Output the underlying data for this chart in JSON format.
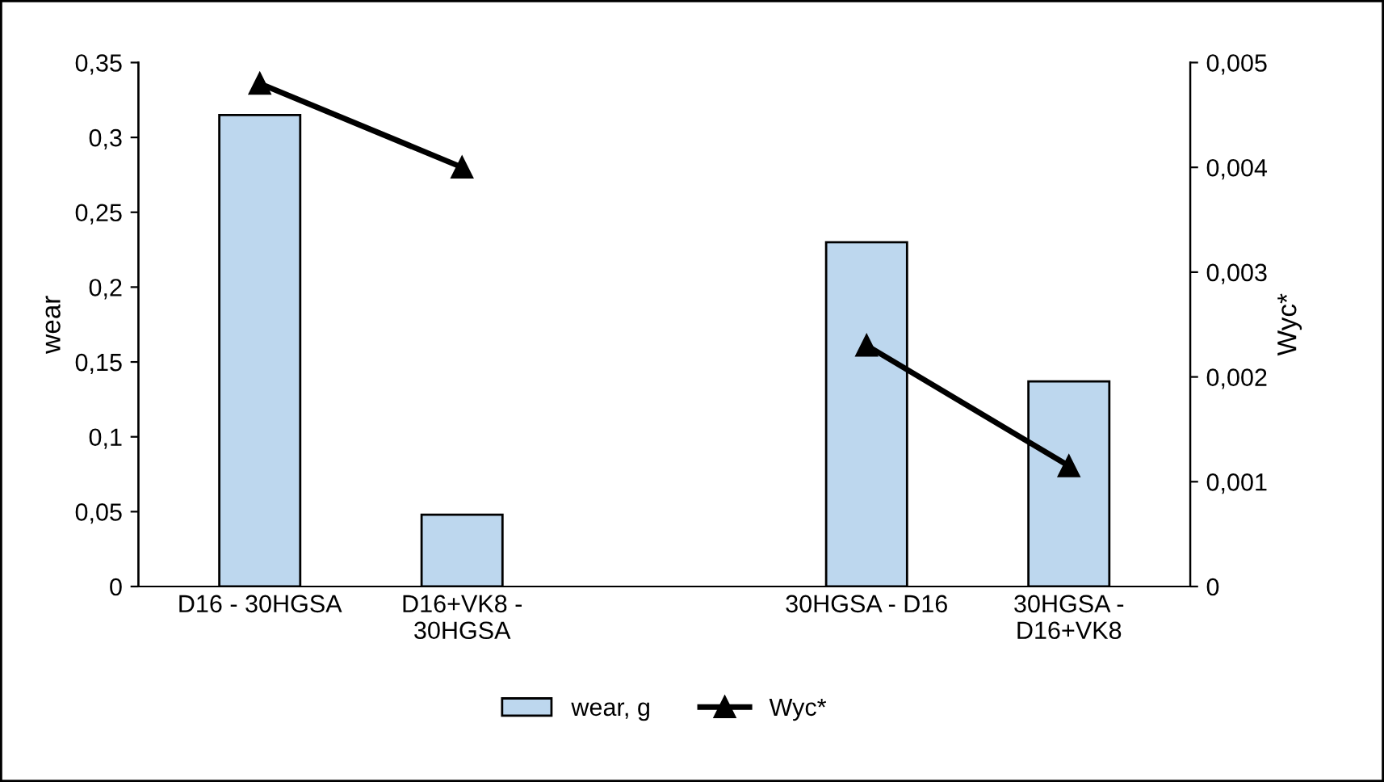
{
  "chart_data": {
    "type": "bar",
    "ylabel": "wear",
    "y2label": "Wyc*",
    "categories": [
      "D16 - 30HGSA",
      "D16+VK8 -\n30HGSA",
      null,
      "30HGSA - D16",
      "30HGSA -\nD16+VK8"
    ],
    "series": [
      {
        "name": "wear, g",
        "color": "#bdd7ee",
        "values": [
          0.315,
          0.048,
          null,
          0.23,
          0.137
        ]
      },
      {
        "name": "Wyc*",
        "type": "line",
        "axis": "y2",
        "color": "#000000",
        "marker": "triangle",
        "values": [
          0.0048,
          0.004,
          null,
          0.0023,
          0.00115
        ]
      }
    ],
    "ylim": [
      0,
      0.35
    ],
    "yticks": [
      0,
      {
        "value": 0.05,
        "label": "0,05"
      },
      {
        "value": 0.1,
        "label": "0,1"
      },
      {
        "value": 0.15,
        "label": "0,15"
      },
      {
        "value": 0.2,
        "label": "0,2"
      },
      {
        "value": 0.25,
        "label": "0,25"
      },
      {
        "value": 0.3,
        "label": "0,3"
      },
      {
        "value": 0.35,
        "label": "0,35"
      }
    ],
    "y2lim": [
      0,
      0.005
    ],
    "y2ticks": [
      0,
      {
        "value": 0.001,
        "label": "0,001"
      },
      {
        "value": 0.002,
        "label": "0,002"
      },
      {
        "value": 0.003,
        "label": "0,003"
      },
      {
        "value": 0.004,
        "label": "0,004"
      },
      {
        "value": 0.005,
        "label": "0,005"
      }
    ],
    "grid": false,
    "legend": "bottom"
  }
}
